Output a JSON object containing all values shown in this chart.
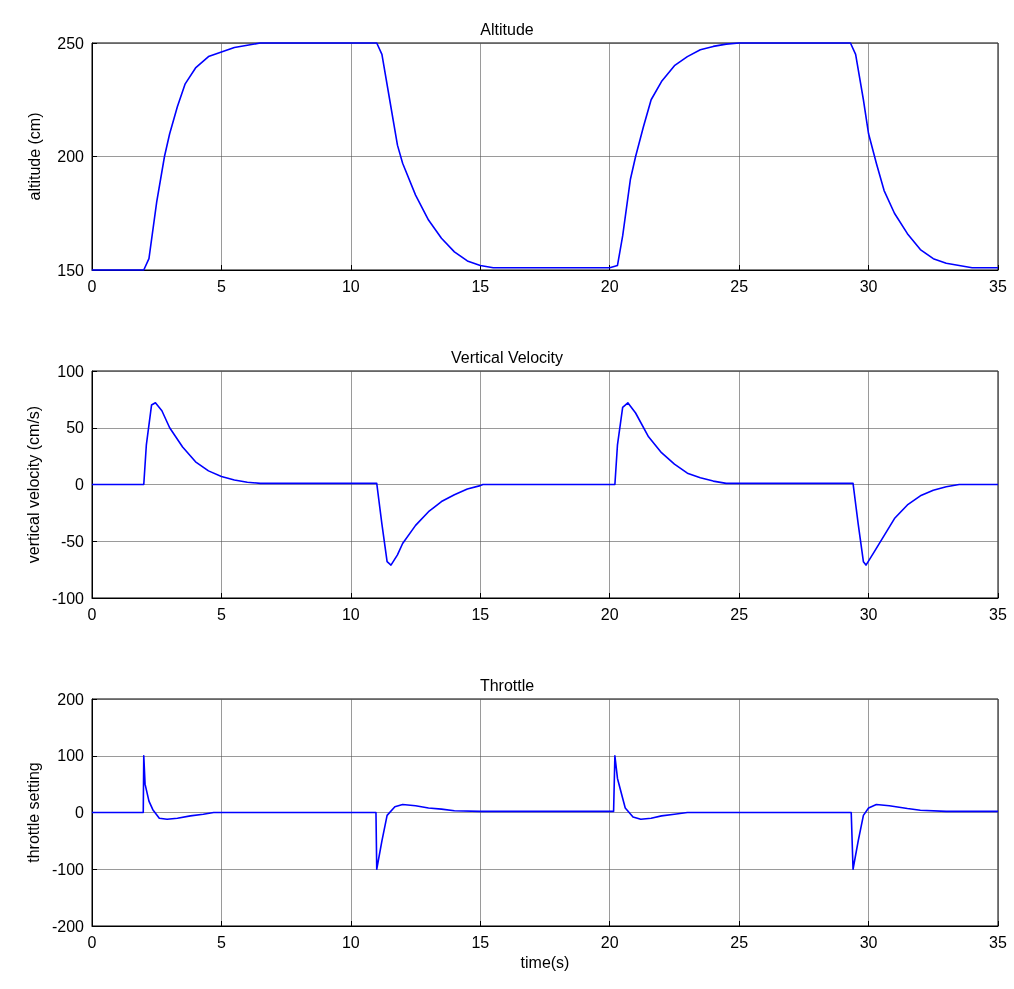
{
  "chart_data": [
    {
      "type": "line",
      "title": "Altitude",
      "ylabel": "altitude (cm)",
      "xlim": [
        0,
        35
      ],
      "xticks": [
        0,
        5,
        10,
        15,
        20,
        25,
        30,
        35
      ],
      "ylim": [
        150,
        250
      ],
      "yticks": [
        150,
        200,
        250
      ],
      "grid": true,
      "marker": "none",
      "line_style": "solid",
      "series": [
        {
          "color": "#0000ff",
          "x": [
            0,
            2.0,
            2.2,
            2.5,
            2.8,
            3.0,
            3.3,
            3.6,
            4.0,
            4.5,
            5.0,
            5.5,
            6.0,
            6.5,
            11.0,
            11.2,
            11.5,
            11.8,
            12.0,
            12.5,
            13.0,
            13.5,
            14.0,
            14.5,
            15.0,
            15.5,
            20.0,
            20.3,
            20.5,
            20.8,
            21.0,
            21.3,
            21.6,
            22.0,
            22.5,
            23.0,
            23.5,
            24.0,
            24.5,
            25.0,
            29.3,
            29.5,
            29.8,
            30.0,
            30.3,
            30.6,
            31.0,
            31.5,
            32.0,
            32.5,
            33.0,
            34.0,
            35.0
          ],
          "values": [
            150,
            150,
            155,
            180,
            200,
            210,
            222,
            232,
            239,
            244,
            246,
            248,
            249,
            250,
            250,
            245,
            225,
            205,
            197,
            183,
            172,
            164,
            158,
            154,
            152,
            151,
            151,
            152,
            165,
            190,
            200,
            213,
            225,
            233,
            240,
            244,
            247,
            248.5,
            249.5,
            250,
            250,
            245,
            225,
            210,
            197,
            185,
            175,
            166,
            159,
            155,
            153,
            151,
            151
          ]
        }
      ]
    },
    {
      "type": "line",
      "title": "Vertical Velocity",
      "ylabel": "vertical velocity (cm/s)",
      "xlim": [
        0,
        35
      ],
      "xticks": [
        0,
        5,
        10,
        15,
        20,
        25,
        30,
        35
      ],
      "ylim": [
        -100,
        100
      ],
      "yticks": [
        -100,
        -50,
        0,
        50,
        100
      ],
      "grid": true,
      "marker": "none",
      "line_style": "solid",
      "series": [
        {
          "color": "#0000ff",
          "x": [
            0,
            2.0,
            2.1,
            2.3,
            2.45,
            2.7,
            3.0,
            3.5,
            4.0,
            4.5,
            5.0,
            5.5,
            6.0,
            6.5,
            11.0,
            11.2,
            11.4,
            11.55,
            11.8,
            12.0,
            12.5,
            13.0,
            13.5,
            14.0,
            14.5,
            15.0,
            15.1,
            20.2,
            20.3,
            20.5,
            20.7,
            21.0,
            21.5,
            22.0,
            22.5,
            23.0,
            23.5,
            24.0,
            24.5,
            29.4,
            29.6,
            29.8,
            29.9,
            30.2,
            30.6,
            31.0,
            31.5,
            32.0,
            32.5,
            33.0,
            33.5,
            35.0
          ],
          "values": [
            0,
            0,
            35,
            70,
            72,
            65,
            50,
            33,
            20,
            12,
            7,
            4,
            2,
            1,
            1,
            -35,
            -68,
            -71,
            -62,
            -52,
            -36,
            -24,
            -15,
            -9,
            -4,
            -1,
            0,
            0,
            35,
            68,
            72,
            63,
            42,
            28,
            18,
            10,
            6,
            3,
            1,
            1,
            -35,
            -68,
            -71,
            -60,
            -45,
            -30,
            -18,
            -10,
            -5,
            -2,
            0,
            0
          ]
        }
      ]
    },
    {
      "type": "line",
      "title": "Throttle",
      "xlabel": "time(s)",
      "ylabel": "throttle setting",
      "xlim": [
        0,
        35
      ],
      "xticks": [
        0,
        5,
        10,
        15,
        20,
        25,
        30,
        35
      ],
      "ylim": [
        -200,
        200
      ],
      "yticks": [
        -200,
        -100,
        0,
        100,
        200
      ],
      "grid": true,
      "marker": "none",
      "line_style": "solid",
      "series": [
        {
          "color": "#0000ff",
          "x": [
            0,
            1.98,
            2.0,
            2.05,
            2.2,
            2.35,
            2.6,
            2.9,
            3.3,
            3.8,
            4.3,
            4.7,
            10.97,
            11.0,
            11.2,
            11.4,
            11.7,
            12.0,
            12.5,
            13.0,
            13.5,
            14.0,
            15.0,
            20.15,
            20.2,
            20.3,
            20.5,
            20.6,
            20.9,
            21.2,
            21.6,
            22.0,
            22.5,
            23.0,
            29.33,
            29.4,
            29.6,
            29.8,
            30.0,
            30.3,
            30.8,
            31.5,
            32.0,
            33.0,
            35.0
          ],
          "values": [
            0,
            0,
            100,
            50,
            20,
            5,
            -10,
            -12,
            -10,
            -6,
            -3,
            0,
            0,
            -100,
            -50,
            -5,
            10,
            14,
            12,
            8,
            6,
            3,
            2,
            2,
            100,
            60,
            25,
            8,
            -8,
            -12,
            -10,
            -6,
            -3,
            0,
            0,
            -100,
            -50,
            -5,
            8,
            14,
            12,
            7,
            4,
            2,
            2
          ]
        }
      ]
    }
  ]
}
